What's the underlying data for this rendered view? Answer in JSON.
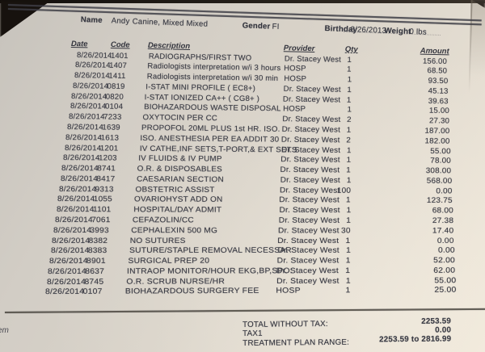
{
  "patient_header": {
    "name_label": "Name",
    "name_value": "Andy",
    "species_value": "Canine, Mixed Mixed",
    "gender_label": "Gender",
    "gender_value": "FI",
    "birthday_label": "Birthday",
    "birthday_value": "8/26/2013",
    "weight_label": "Weight",
    "weight_value": "0 lbs"
  },
  "table": {
    "headers": {
      "date": "Date",
      "code": "Code",
      "description": "Description",
      "provider": "Provider",
      "qty": "Qty",
      "amount": "Amount"
    },
    "rows": [
      {
        "date": "8/26/2014",
        "code": "1401",
        "description": "RADIOGRAPHS/FIRST TWO",
        "provider": "Dr. Stacey West",
        "qty": "1",
        "amount": "156.00"
      },
      {
        "date": "8/26/2014",
        "code": "1407",
        "description": "Radiologists interpretation w/i 3 hours",
        "provider": "HOSP",
        "qty": "1",
        "amount": "68.50"
      },
      {
        "date": "8/26/2014",
        "code": "1411",
        "description": "Radiologists interpretation w/i 30 min",
        "provider": "HOSP",
        "qty": "1",
        "amount": "93.50"
      },
      {
        "date": "8/26/2014",
        "code": "0819",
        "description": "I-STAT MINI PROFILE ( EC8+)",
        "provider": "Dr. Stacey West",
        "qty": "1",
        "amount": "45.13"
      },
      {
        "date": "8/26/2014",
        "code": "0820",
        "description": "I-STAT IONIZED CA++ ( CG8+ )",
        "provider": "Dr. Stacey West",
        "qty": "1",
        "amount": "39.63"
      },
      {
        "date": "8/26/2014",
        "code": "0104",
        "description": "BIOHAZARDOUS WASTE DISPOSAL",
        "provider": "HOSP",
        "qty": "1",
        "amount": "15.00"
      },
      {
        "date": "8/26/2014",
        "code": "7233",
        "description": "OXYTOCIN PER CC",
        "provider": "Dr. Stacey West",
        "qty": "2",
        "amount": "27.30"
      },
      {
        "date": "8/26/2014",
        "code": "1639",
        "description": "PROPOFOL 20ML PLUS 1st HR. ISO.",
        "provider": "Dr. Stacey West",
        "qty": "1",
        "amount": "187.00"
      },
      {
        "date": "8/26/2014",
        "code": "1613",
        "description": "ISO.  ANESTHESIA PER EA ADDIT 30",
        "provider": "Dr. Stacey West",
        "qty": "2",
        "amount": "182.00"
      },
      {
        "date": "8/26/2014",
        "code": "1201",
        "description": "IV CATHE,INF SETS,T-PORT,& EXT SETS",
        "provider": "Dr. Stacey West",
        "qty": "1",
        "amount": "55.00"
      },
      {
        "date": "8/26/2014",
        "code": "1203",
        "description": "IV FLUIDS & IV PUMP",
        "provider": "Dr. Stacey West",
        "qty": "1",
        "amount": "78.00"
      },
      {
        "date": "8/26/2014",
        "code": "8741",
        "description": "O.R. & DISPOSABLES",
        "provider": "Dr. Stacey West",
        "qty": "1",
        "amount": "308.00"
      },
      {
        "date": "8/26/2014",
        "code": "8417",
        "description": "CAESARIAN SECTION",
        "provider": "Dr. Stacey West",
        "qty": "1",
        "amount": "568.00"
      },
      {
        "date": "8/26/2014",
        "code": "9313",
        "description": "OBSTETRIC ASSIST",
        "provider": "Dr. Stacey West",
        "qty": "100",
        "amount": "0.00"
      },
      {
        "date": "8/26/2014",
        "code": "1055",
        "description": "OVARIOHYST ADD ON",
        "provider": "Dr. Stacey West",
        "qty": "1",
        "amount": "123.75"
      },
      {
        "date": "8/26/2014",
        "code": "1101",
        "description": "HOSPITAL/DAY ADMIT",
        "provider": "Dr. Stacey West",
        "qty": "1",
        "amount": "68.00"
      },
      {
        "date": "8/26/2014",
        "code": "7061",
        "description": "CEFAZOLIN/CC",
        "provider": "Dr. Stacey West",
        "qty": "1",
        "amount": "27.38"
      },
      {
        "date": "8/26/2014",
        "code": "3993",
        "description": "CEPHALEXIN 500 MG",
        "provider": "Dr. Stacey West",
        "qty": "30",
        "amount": "17.40"
      },
      {
        "date": "8/26/2014",
        "code": "8382",
        "description": "NO SUTURES",
        "provider": "Dr. Stacey West",
        "qty": "1",
        "amount": "0.00"
      },
      {
        "date": "8/26/2014",
        "code": "8383",
        "description": "SUTURE/STAPLE REMOVAL NECESSAR",
        "provider": "Dr. Stacey West",
        "qty": "1",
        "amount": "0.00"
      },
      {
        "date": "8/26/2014",
        "code": "8901",
        "description": "SURGICAL PREP 20",
        "provider": "Dr. Stacey West",
        "qty": "1",
        "amount": "52.00"
      },
      {
        "date": "8/26/2014",
        "code": "8637",
        "description": "INTRAOP MONITOR/HOUR EKG,BP,SPO:",
        "provider": "Dr. Stacey West",
        "qty": "1",
        "amount": "62.00"
      },
      {
        "date": "8/26/2014",
        "code": "8745",
        "description": "O.R. SCRUB NURSE/HR",
        "provider": "Dr. Stacey West",
        "qty": "1",
        "amount": "55.00"
      },
      {
        "date": "8/26/2014",
        "code": "0107",
        "description": "BIOHAZARDOUS SURGERY FEE",
        "provider": "HOSP",
        "qty": "1",
        "amount": "25.00"
      }
    ]
  },
  "totals": {
    "rows": [
      {
        "label": "TOTAL WITHOUT TAX:",
        "value": "2253.59"
      },
      {
        "label": "TAX1",
        "value": "0.00"
      },
      {
        "label": "TREATMENT PLAN RANGE:",
        "value": "2253.59 to 2816.99"
      }
    ]
  },
  "edge_fragment": "em",
  "colors": {
    "paper_light": "#efe7d9",
    "paper_dark": "#c7c3bc",
    "ink": "#3b3c45",
    "background": "#171310"
  }
}
